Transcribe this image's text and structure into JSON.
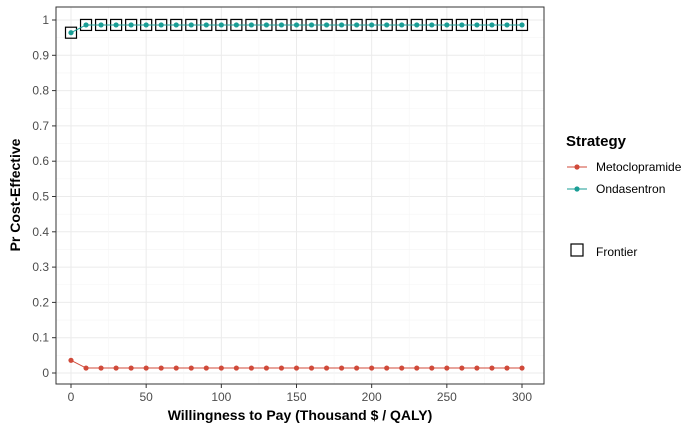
{
  "chart_data": {
    "type": "line",
    "xlabel": "Willingness to Pay (Thousand $ / QALY)",
    "ylabel": "Pr Cost-Effective",
    "xlim": [
      0,
      300
    ],
    "ylim": [
      0,
      1
    ],
    "x_ticks": [
      0,
      50,
      100,
      150,
      200,
      250,
      300
    ],
    "y_ticks": [
      0,
      0.1,
      0.2,
      0.3,
      0.4,
      0.5,
      0.6,
      0.7,
      0.8,
      0.9,
      1
    ],
    "x_tick_labels": [
      "0",
      "50",
      "100",
      "150",
      "200",
      "250",
      "300"
    ],
    "y_tick_labels": [
      "0",
      "0.1",
      "0.2",
      "0.3",
      "0.4",
      "0.5",
      "0.6",
      "0.7",
      "0.8",
      "0.9",
      "1"
    ],
    "grid": true,
    "x": [
      0,
      10,
      20,
      30,
      40,
      50,
      60,
      70,
      80,
      90,
      100,
      110,
      120,
      130,
      140,
      150,
      160,
      170,
      180,
      190,
      200,
      210,
      220,
      230,
      240,
      250,
      260,
      270,
      280,
      290,
      300
    ],
    "series": [
      {
        "name": "Metoclopramide",
        "color": "#d04a3a",
        "values": [
          0.036,
          0.014,
          0.014,
          0.014,
          0.014,
          0.014,
          0.014,
          0.014,
          0.014,
          0.014,
          0.014,
          0.014,
          0.014,
          0.014,
          0.014,
          0.014,
          0.014,
          0.014,
          0.014,
          0.014,
          0.014,
          0.014,
          0.014,
          0.014,
          0.014,
          0.014,
          0.014,
          0.014,
          0.014,
          0.014,
          0.014
        ]
      },
      {
        "name": "Ondasentron",
        "color": "#1a9e96",
        "values": [
          0.964,
          0.986,
          0.986,
          0.986,
          0.986,
          0.986,
          0.986,
          0.986,
          0.986,
          0.986,
          0.986,
          0.986,
          0.986,
          0.986,
          0.986,
          0.986,
          0.986,
          0.986,
          0.986,
          0.986,
          0.986,
          0.986,
          0.986,
          0.986,
          0.986,
          0.986,
          0.986,
          0.986,
          0.986,
          0.986,
          0.986
        ]
      }
    ],
    "frontier": {
      "name": "Frontier",
      "strategy": "Ondasentron"
    },
    "legend": {
      "title": "Strategy",
      "position": "right"
    }
  }
}
